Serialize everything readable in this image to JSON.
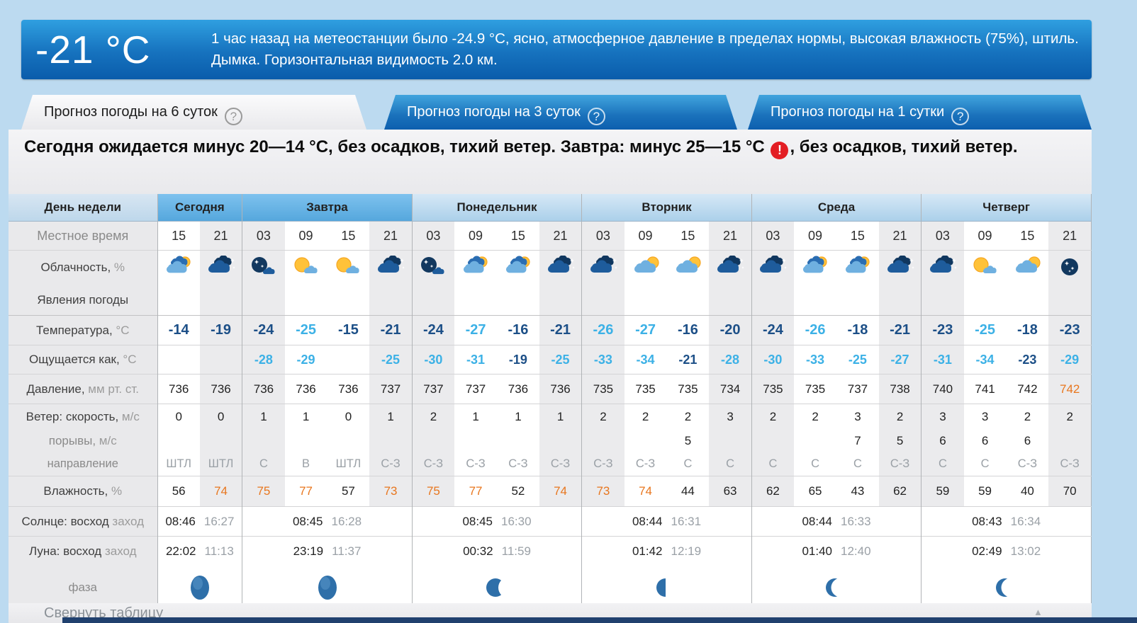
{
  "banner": {
    "temperature": "-21 °C",
    "description": "1 час назад на метеостанции было -24.9 °C, ясно, атмосферное давление в пределах нормы, высокая влажность (75%), штиль. Дымка. Горизонтальная видимость 2.0 км."
  },
  "tabs": [
    {
      "label": "Прогноз погоды на 6 суток",
      "help_icon": "?",
      "active": true
    },
    {
      "label": "Прогноз погоды на 3 суток",
      "help_icon": "?",
      "active": false
    },
    {
      "label": "Прогноз погоды на 1 сутки",
      "help_icon": "?",
      "active": false
    }
  ],
  "summary": {
    "text_before": "Сегодня ожидается минус 20—14 °C, без осадков, тихий ветер. Завтра: минус 25—15 °C ",
    "warning_icon": "!",
    "text_after": ", без осадков, тихий ветер."
  },
  "colors": {
    "temp_cold": "#3cb1e6",
    "temp_normal": "#1c4f87",
    "alert_orange": "#e8761e",
    "tab_blue": "#0d5fae",
    "warning_red": "#e31e24"
  },
  "table": {
    "row_labels": {
      "day_of_week": "День недели",
      "local_time": "Местное время",
      "cloudiness": {
        "main": "Облачность,",
        "sub": " %"
      },
      "phenomena": "Явления погоды",
      "temperature": {
        "main": "Температура,",
        "sub": " °C"
      },
      "feels_like": {
        "main": "Ощущается как,",
        "sub": " °C"
      },
      "pressure": {
        "main": "Давление,",
        "sub": " мм рт. ст."
      },
      "wind_speed": {
        "main": "Ветер: скорость,",
        "sub": " м/с"
      },
      "wind_gusts": {
        "main": "порывы,",
        "sub": " м/с"
      },
      "wind_direction": "направление",
      "humidity": {
        "main": "Влажность,",
        "sub": " %"
      },
      "sun": {
        "main": "Солнце: восход",
        "sub": " заход"
      },
      "moon": {
        "main": "Луна: восход",
        "sub": " заход"
      },
      "phase": "фаза"
    },
    "days": [
      {
        "name": "Сегодня",
        "span": 2,
        "highlight": true,
        "sun_rise": "08:46",
        "sun_set": "16:27",
        "moon_rise": "22:02",
        "moon_set": "11:13",
        "moon_phase": "full"
      },
      {
        "name": "Завтра",
        "span": 4,
        "highlight": true,
        "sun_rise": "08:45",
        "sun_set": "16:28",
        "moon_rise": "23:19",
        "moon_set": "11:37",
        "moon_phase": "full"
      },
      {
        "name": "Понедельник",
        "span": 4,
        "highlight": false,
        "sun_rise": "08:45",
        "sun_set": "16:30",
        "moon_rise": "00:32",
        "moon_set": "11:59",
        "moon_phase": "gibbous"
      },
      {
        "name": "Вторник",
        "span": 4,
        "highlight": false,
        "sun_rise": "08:44",
        "sun_set": "16:31",
        "moon_rise": "01:42",
        "moon_set": "12:19",
        "moon_phase": "half"
      },
      {
        "name": "Среда",
        "span": 4,
        "highlight": false,
        "sun_rise": "08:44",
        "sun_set": "16:33",
        "moon_rise": "01:40",
        "moon_set": "12:40",
        "moon_phase": "crescent"
      },
      {
        "name": "Четверг",
        "span": 4,
        "highlight": false,
        "sun_rise": "08:43",
        "sun_set": "16:34",
        "moon_rise": "02:49",
        "moon_set": "13:02",
        "moon_phase": "crescent"
      }
    ],
    "columns": [
      {
        "day": 0,
        "time": "15",
        "night": false,
        "icon": "clouds-sun",
        "temp": "-14",
        "temp_cold": false,
        "feels": "",
        "feels_cold": false,
        "pressure": "736",
        "pressure_alert": false,
        "wind_speed": "0",
        "wind_gusts": "",
        "wind_direction": "ШТЛ",
        "humidity": "56",
        "humidity_alert": false
      },
      {
        "day": 0,
        "time": "21",
        "night": true,
        "icon": "cloud-moon",
        "temp": "-19",
        "temp_cold": false,
        "feels": "",
        "feels_cold": false,
        "pressure": "736",
        "pressure_alert": false,
        "wind_speed": "0",
        "wind_gusts": "",
        "wind_direction": "ШТЛ",
        "humidity": "74",
        "humidity_alert": true
      },
      {
        "day": 1,
        "time": "03",
        "night": true,
        "icon": "moon-cloud",
        "temp": "-24",
        "temp_cold": false,
        "feels": "-28",
        "feels_cold": true,
        "pressure": "736",
        "pressure_alert": false,
        "wind_speed": "1",
        "wind_gusts": "",
        "wind_direction": "С",
        "humidity": "75",
        "humidity_alert": true
      },
      {
        "day": 1,
        "time": "09",
        "night": false,
        "icon": "sun-cloud-small",
        "temp": "-25",
        "temp_cold": true,
        "feels": "-29",
        "feels_cold": true,
        "pressure": "736",
        "pressure_alert": false,
        "wind_speed": "1",
        "wind_gusts": "",
        "wind_direction": "В",
        "humidity": "77",
        "humidity_alert": true
      },
      {
        "day": 1,
        "time": "15",
        "night": false,
        "icon": "sun-cloud-small",
        "temp": "-15",
        "temp_cold": false,
        "feels": "",
        "feels_cold": false,
        "pressure": "736",
        "pressure_alert": false,
        "wind_speed": "0",
        "wind_gusts": "",
        "wind_direction": "ШТЛ",
        "humidity": "57",
        "humidity_alert": false
      },
      {
        "day": 1,
        "time": "21",
        "night": true,
        "icon": "cloud-moon",
        "temp": "-21",
        "temp_cold": false,
        "feels": "-25",
        "feels_cold": true,
        "pressure": "737",
        "pressure_alert": false,
        "wind_speed": "1",
        "wind_gusts": "",
        "wind_direction": "С-З",
        "humidity": "73",
        "humidity_alert": true
      },
      {
        "day": 2,
        "time": "03",
        "night": true,
        "icon": "moon-cloud",
        "temp": "-24",
        "temp_cold": false,
        "feels": "-30",
        "feels_cold": true,
        "pressure": "737",
        "pressure_alert": false,
        "wind_speed": "2",
        "wind_gusts": "",
        "wind_direction": "С-З",
        "humidity": "75",
        "humidity_alert": true
      },
      {
        "day": 2,
        "time": "09",
        "night": false,
        "icon": "clouds-sun",
        "temp": "-27",
        "temp_cold": true,
        "feels": "-31",
        "feels_cold": true,
        "pressure": "737",
        "pressure_alert": false,
        "wind_speed": "1",
        "wind_gusts": "",
        "wind_direction": "С-З",
        "humidity": "77",
        "humidity_alert": true
      },
      {
        "day": 2,
        "time": "15",
        "night": false,
        "icon": "clouds-sun",
        "temp": "-16",
        "temp_cold": false,
        "feels": "-19",
        "feels_cold": false,
        "pressure": "736",
        "pressure_alert": false,
        "wind_speed": "1",
        "wind_gusts": "",
        "wind_direction": "С-З",
        "humidity": "52",
        "humidity_alert": false
      },
      {
        "day": 2,
        "time": "21",
        "night": true,
        "icon": "cloud-moon",
        "temp": "-21",
        "temp_cold": false,
        "feels": "-25",
        "feels_cold": true,
        "pressure": "736",
        "pressure_alert": false,
        "wind_speed": "1",
        "wind_gusts": "",
        "wind_direction": "С-З",
        "humidity": "74",
        "humidity_alert": true
      },
      {
        "day": 3,
        "time": "03",
        "night": true,
        "icon": "cloud-moon",
        "temp": "-26",
        "temp_cold": true,
        "feels": "-33",
        "feels_cold": true,
        "pressure": "735",
        "pressure_alert": false,
        "wind_speed": "2",
        "wind_gusts": "",
        "wind_direction": "С-З",
        "humidity": "73",
        "humidity_alert": true
      },
      {
        "day": 3,
        "time": "09",
        "night": false,
        "icon": "cloud-sun",
        "temp": "-27",
        "temp_cold": true,
        "feels": "-34",
        "feels_cold": true,
        "pressure": "735",
        "pressure_alert": false,
        "wind_speed": "2",
        "wind_gusts": "",
        "wind_direction": "С-З",
        "humidity": "74",
        "humidity_alert": true
      },
      {
        "day": 3,
        "time": "15",
        "night": false,
        "icon": "cloud-sun",
        "temp": "-16",
        "temp_cold": false,
        "feels": "-21",
        "feels_cold": false,
        "pressure": "735",
        "pressure_alert": false,
        "wind_speed": "2",
        "wind_gusts": "5",
        "wind_direction": "С",
        "humidity": "44",
        "humidity_alert": false
      },
      {
        "day": 3,
        "time": "21",
        "night": true,
        "icon": "cloud-moon",
        "temp": "-20",
        "temp_cold": false,
        "feels": "-28",
        "feels_cold": true,
        "pressure": "734",
        "pressure_alert": false,
        "wind_speed": "3",
        "wind_gusts": "",
        "wind_direction": "С",
        "humidity": "63",
        "humidity_alert": false
      },
      {
        "day": 4,
        "time": "03",
        "night": true,
        "icon": "cloud-moon",
        "temp": "-24",
        "temp_cold": false,
        "feels": "-30",
        "feels_cold": true,
        "pressure": "735",
        "pressure_alert": false,
        "wind_speed": "2",
        "wind_gusts": "",
        "wind_direction": "С",
        "humidity": "62",
        "humidity_alert": false
      },
      {
        "day": 4,
        "time": "09",
        "night": false,
        "icon": "clouds-sun",
        "temp": "-26",
        "temp_cold": true,
        "feels": "-33",
        "feels_cold": true,
        "pressure": "735",
        "pressure_alert": false,
        "wind_speed": "2",
        "wind_gusts": "",
        "wind_direction": "С",
        "humidity": "65",
        "humidity_alert": false
      },
      {
        "day": 4,
        "time": "15",
        "night": false,
        "icon": "clouds-sun",
        "temp": "-18",
        "temp_cold": false,
        "feels": "-25",
        "feels_cold": true,
        "pressure": "737",
        "pressure_alert": false,
        "wind_speed": "3",
        "wind_gusts": "7",
        "wind_direction": "С",
        "humidity": "43",
        "humidity_alert": false
      },
      {
        "day": 4,
        "time": "21",
        "night": true,
        "icon": "cloud-moon",
        "temp": "-21",
        "temp_cold": false,
        "feels": "-27",
        "feels_cold": true,
        "pressure": "738",
        "pressure_alert": false,
        "wind_speed": "2",
        "wind_gusts": "5",
        "wind_direction": "С-З",
        "humidity": "62",
        "humidity_alert": false
      },
      {
        "day": 5,
        "time": "03",
        "night": true,
        "icon": "cloud-moon",
        "temp": "-23",
        "temp_cold": false,
        "feels": "-31",
        "feels_cold": true,
        "pressure": "740",
        "pressure_alert": false,
        "wind_speed": "3",
        "wind_gusts": "6",
        "wind_direction": "С",
        "humidity": "59",
        "humidity_alert": false
      },
      {
        "day": 5,
        "time": "09",
        "night": false,
        "icon": "sun-cloud-small",
        "temp": "-25",
        "temp_cold": true,
        "feels": "-34",
        "feels_cold": true,
        "pressure": "741",
        "pressure_alert": false,
        "wind_speed": "3",
        "wind_gusts": "6",
        "wind_direction": "С",
        "humidity": "59",
        "humidity_alert": false
      },
      {
        "day": 5,
        "time": "15",
        "night": false,
        "icon": "cloud-sun",
        "temp": "-18",
        "temp_cold": false,
        "feels": "-23",
        "feels_cold": false,
        "pressure": "742",
        "pressure_alert": false,
        "wind_speed": "2",
        "wind_gusts": "6",
        "wind_direction": "С-З",
        "humidity": "40",
        "humidity_alert": false
      },
      {
        "day": 5,
        "time": "21",
        "night": true,
        "icon": "moon-stars",
        "temp": "-23",
        "temp_cold": false,
        "feels": "-29",
        "feels_cold": true,
        "pressure": "742",
        "pressure_alert": true,
        "wind_speed": "2",
        "wind_gusts": "",
        "wind_direction": "С-З",
        "humidity": "70",
        "humidity_alert": false
      }
    ]
  },
  "footer": {
    "collapse_label": "Свернуть таблицу",
    "scroll_top_icon": "▲"
  }
}
